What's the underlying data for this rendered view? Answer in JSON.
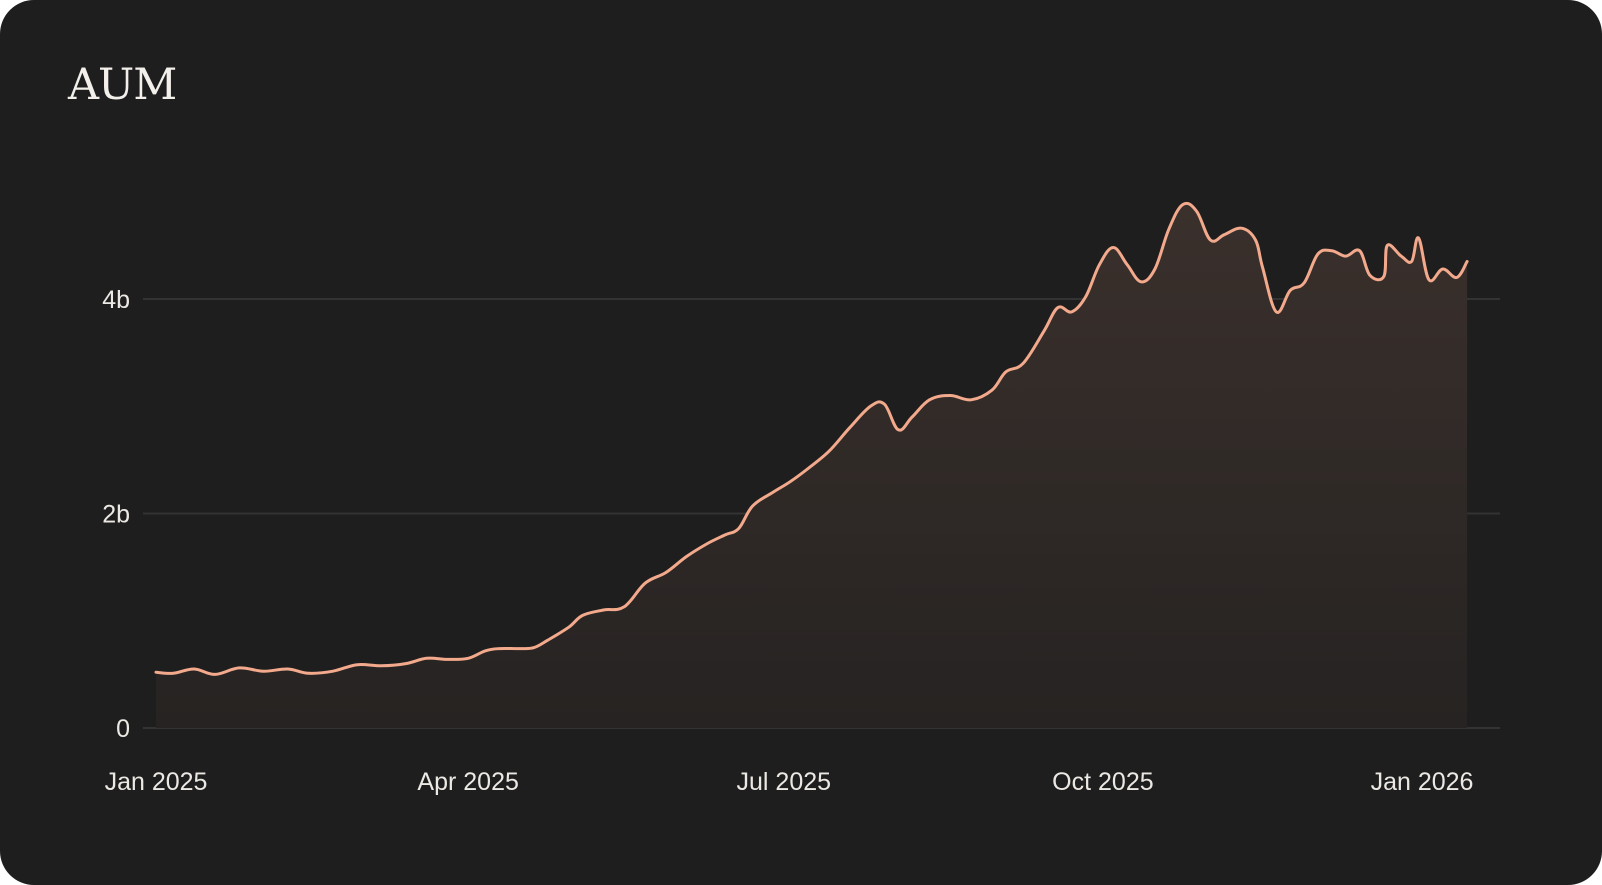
{
  "title": "AUM",
  "colors": {
    "background": "#1e1e1e",
    "line": "#f3a98c",
    "area_top": "#3a302c",
    "area_bottom": "#262322",
    "grid": "#333333",
    "text": "#ece8e3"
  },
  "chart_data": {
    "type": "area",
    "title": "AUM",
    "xlabel": "",
    "ylabel": "",
    "x_type": "date",
    "y_unit": "b",
    "ylim": [
      0,
      5.3
    ],
    "grid": true,
    "y_ticks": [
      {
        "value": 0,
        "label": "0"
      },
      {
        "value": 2,
        "label": "2b"
      },
      {
        "value": 4,
        "label": "4b"
      }
    ],
    "x_ticks": [
      {
        "date": "2025-01-01",
        "label": "Jan 2025"
      },
      {
        "date": "2025-04-01",
        "label": "Apr 2025"
      },
      {
        "date": "2025-07-01",
        "label": "Jul 2025"
      },
      {
        "date": "2025-10-01",
        "label": "Oct 2025"
      },
      {
        "date": "2026-01-01",
        "label": "Jan 2026"
      }
    ],
    "series": [
      {
        "points": [
          [
            "2025-01-01",
            0.52
          ],
          [
            "2025-01-06",
            0.51
          ],
          [
            "2025-01-12",
            0.55
          ],
          [
            "2025-01-18",
            0.5
          ],
          [
            "2025-01-25",
            0.56
          ],
          [
            "2025-02-01",
            0.53
          ],
          [
            "2025-02-08",
            0.55
          ],
          [
            "2025-02-14",
            0.51
          ],
          [
            "2025-02-21",
            0.53
          ],
          [
            "2025-02-28",
            0.59
          ],
          [
            "2025-03-07",
            0.58
          ],
          [
            "2025-03-14",
            0.6
          ],
          [
            "2025-03-20",
            0.65
          ],
          [
            "2025-03-26",
            0.64
          ],
          [
            "2025-04-01",
            0.65
          ],
          [
            "2025-04-06",
            0.72
          ],
          [
            "2025-04-10",
            0.74
          ],
          [
            "2025-04-16",
            0.74
          ],
          [
            "2025-04-20",
            0.75
          ],
          [
            "2025-04-24",
            0.82
          ],
          [
            "2025-04-30",
            0.94
          ],
          [
            "2025-05-04",
            1.05
          ],
          [
            "2025-05-10",
            1.1
          ],
          [
            "2025-05-16",
            1.13
          ],
          [
            "2025-05-22",
            1.35
          ],
          [
            "2025-05-28",
            1.45
          ],
          [
            "2025-06-03",
            1.6
          ],
          [
            "2025-06-09",
            1.72
          ],
          [
            "2025-06-14",
            1.8
          ],
          [
            "2025-06-18",
            1.86
          ],
          [
            "2025-06-22",
            2.07
          ],
          [
            "2025-06-28",
            2.2
          ],
          [
            "2025-07-03",
            2.3
          ],
          [
            "2025-07-08",
            2.42
          ],
          [
            "2025-07-14",
            2.58
          ],
          [
            "2025-07-20",
            2.8
          ],
          [
            "2025-07-26",
            3.0
          ],
          [
            "2025-07-30",
            3.02
          ],
          [
            "2025-08-03",
            2.78
          ],
          [
            "2025-08-07",
            2.9
          ],
          [
            "2025-08-12",
            3.06
          ],
          [
            "2025-08-18",
            3.1
          ],
          [
            "2025-08-24",
            3.06
          ],
          [
            "2025-08-30",
            3.15
          ],
          [
            "2025-09-03",
            3.32
          ],
          [
            "2025-09-08",
            3.4
          ],
          [
            "2025-09-14",
            3.7
          ],
          [
            "2025-09-18",
            3.92
          ],
          [
            "2025-09-22",
            3.88
          ],
          [
            "2025-09-26",
            4.02
          ],
          [
            "2025-09-30",
            4.32
          ],
          [
            "2025-10-04",
            4.48
          ],
          [
            "2025-10-08",
            4.32
          ],
          [
            "2025-10-12",
            4.16
          ],
          [
            "2025-10-16",
            4.28
          ],
          [
            "2025-10-20",
            4.65
          ],
          [
            "2025-10-24",
            4.88
          ],
          [
            "2025-10-28",
            4.82
          ],
          [
            "2025-11-01",
            4.55
          ],
          [
            "2025-11-05",
            4.6
          ],
          [
            "2025-11-10",
            4.66
          ],
          [
            "2025-11-14",
            4.55
          ],
          [
            "2025-11-16",
            4.3
          ],
          [
            "2025-11-20",
            3.88
          ],
          [
            "2025-11-24",
            4.08
          ],
          [
            "2025-11-28",
            4.15
          ],
          [
            "2025-12-02",
            4.42
          ],
          [
            "2025-12-06",
            4.45
          ],
          [
            "2025-12-10",
            4.4
          ],
          [
            "2025-12-14",
            4.45
          ],
          [
            "2025-12-17",
            4.22
          ],
          [
            "2025-12-21",
            4.21
          ],
          [
            "2025-12-22",
            4.5
          ],
          [
            "2025-12-26",
            4.4
          ],
          [
            "2025-12-29",
            4.35
          ],
          [
            "2025-12-31",
            4.57
          ],
          [
            "2026-01-03",
            4.18
          ],
          [
            "2026-01-07",
            4.28
          ],
          [
            "2026-01-11",
            4.2
          ],
          [
            "2026-01-14",
            4.35
          ]
        ]
      }
    ]
  }
}
